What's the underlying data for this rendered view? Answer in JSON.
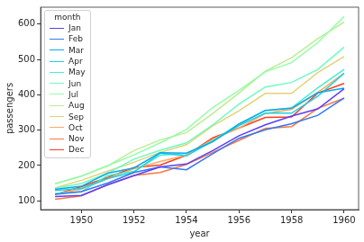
{
  "chart_data": {
    "type": "line",
    "x_label": "year",
    "y_label": "passengers",
    "x": [
      1949,
      1950,
      1951,
      1952,
      1953,
      1954,
      1955,
      1956,
      1957,
      1958,
      1959,
      1960
    ],
    "series": [
      {
        "name": "Jan",
        "color": "#5a3dfd",
        "values": [
          112,
          115,
          145,
          171,
          196,
          204,
          242,
          284,
          315,
          340,
          360,
          417
        ]
      },
      {
        "name": "Feb",
        "color": "#3177f8",
        "values": [
          118,
          126,
          150,
          180,
          196,
          188,
          233,
          277,
          301,
          318,
          342,
          391
        ]
      },
      {
        "name": "Mar",
        "color": "#0aa9ee",
        "values": [
          132,
          141,
          178,
          193,
          236,
          235,
          267,
          317,
          356,
          362,
          406,
          419
        ]
      },
      {
        "name": "Apr",
        "color": "#1dd2e2",
        "values": [
          129,
          135,
          163,
          181,
          235,
          227,
          269,
          313,
          348,
          348,
          396,
          461
        ]
      },
      {
        "name": "May",
        "color": "#45eed2",
        "values": [
          121,
          125,
          172,
          183,
          229,
          234,
          270,
          318,
          355,
          363,
          420,
          472
        ]
      },
      {
        "name": "Jun",
        "color": "#6cfdbf",
        "values": [
          135,
          149,
          178,
          218,
          243,
          264,
          315,
          374,
          422,
          435,
          472,
          535
        ]
      },
      {
        "name": "Jul",
        "color": "#93fda9",
        "values": [
          148,
          170,
          199,
          230,
          264,
          302,
          364,
          413,
          465,
          491,
          548,
          622
        ]
      },
      {
        "name": "Aug",
        "color": "#baee91",
        "values": [
          148,
          170,
          199,
          242,
          272,
          293,
          347,
          405,
          467,
          505,
          559,
          606
        ]
      },
      {
        "name": "Sep",
        "color": "#e2d277",
        "values": [
          136,
          158,
          184,
          209,
          237,
          259,
          312,
          355,
          404,
          404,
          463,
          508
        ]
      },
      {
        "name": "Oct",
        "color": "#ffa95a",
        "values": [
          119,
          133,
          162,
          191,
          211,
          229,
          274,
          306,
          347,
          359,
          407,
          461
        ]
      },
      {
        "name": "Nov",
        "color": "#ff773d",
        "values": [
          104,
          114,
          146,
          172,
          180,
          203,
          237,
          271,
          305,
          310,
          362,
          390
        ]
      },
      {
        "name": "Dec",
        "color": "#ff3d1f",
        "values": [
          118,
          140,
          166,
          194,
          201,
          229,
          278,
          306,
          336,
          337,
          405,
          432
        ]
      }
    ],
    "xlim": [
      1948.45,
      1960.55
    ],
    "xticks": [
      1950,
      1952,
      1954,
      1956,
      1958,
      1960
    ],
    "ylim": [
      75,
      648
    ],
    "yticks": [
      100,
      200,
      300,
      400,
      500,
      600
    ],
    "grid": false,
    "legend": "upper left",
    "legend_title": "month"
  }
}
